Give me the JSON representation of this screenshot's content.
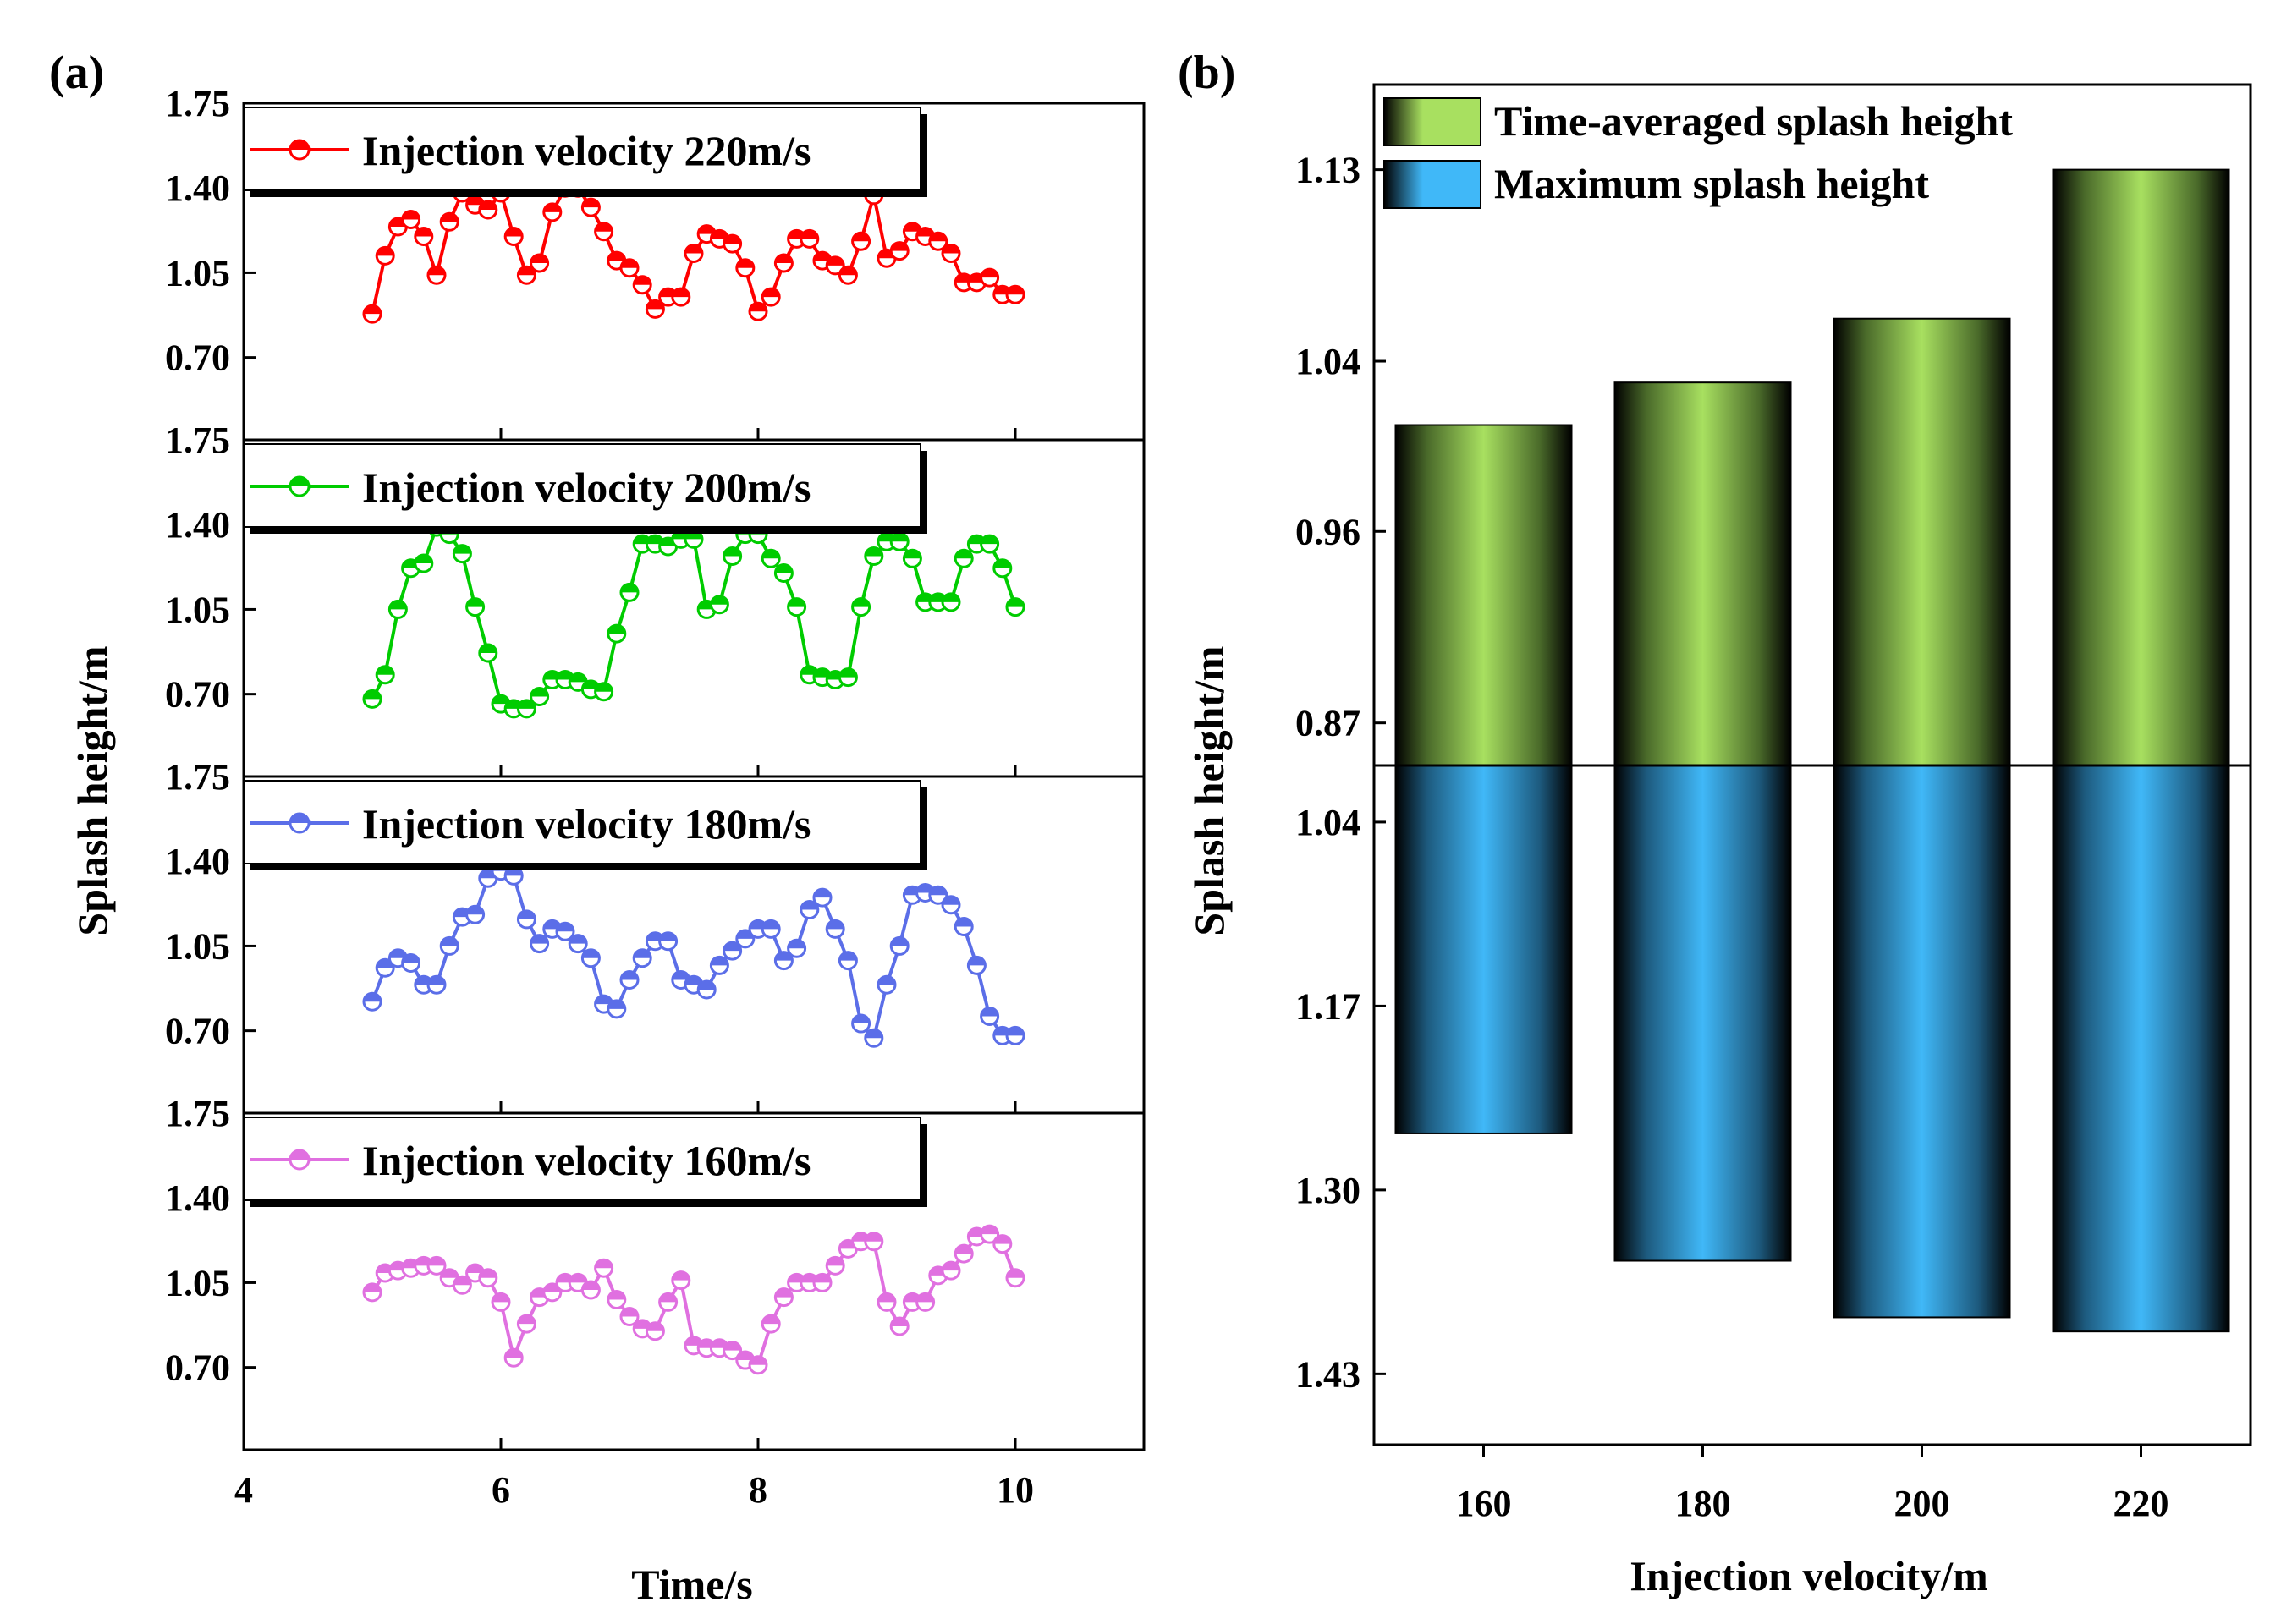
{
  "chart_data": [
    {
      "panel": "(a)",
      "type": "line",
      "xlabel": "Time/s",
      "ylabel": "Splash height/m",
      "xlim": [
        4,
        11
      ],
      "xticks": [
        4,
        6,
        8,
        10
      ],
      "ylim": [
        0.36,
        1.75
      ],
      "yticks": [
        "0.70",
        "1.05",
        "1.40",
        "1.75"
      ],
      "x": [
        5.0,
        5.1,
        5.2,
        5.3,
        5.4,
        5.5,
        5.6,
        5.7,
        5.8,
        5.9,
        6.0,
        6.1,
        6.2,
        6.3,
        6.4,
        6.5,
        6.6,
        6.7,
        6.8,
        6.9,
        7.0,
        7.1,
        7.2,
        7.3,
        7.4,
        7.5,
        7.6,
        7.7,
        7.8,
        7.9,
        8.0,
        8.1,
        8.2,
        8.3,
        8.4,
        8.5,
        8.6,
        8.7,
        8.8,
        8.9,
        9.0,
        9.1,
        9.2,
        9.3,
        9.4,
        9.5,
        9.6,
        9.7,
        9.8,
        9.9,
        10.0
      ],
      "series": [
        {
          "name": "Injection velocity 220m/s",
          "color": "#ff0000",
          "values": [
            0.88,
            1.12,
            1.24,
            1.27,
            1.2,
            1.04,
            1.26,
            1.38,
            1.33,
            1.31,
            1.38,
            1.2,
            1.04,
            1.09,
            1.3,
            1.4,
            1.4,
            1.32,
            1.22,
            1.1,
            1.07,
            1.0,
            0.9,
            0.95,
            0.95,
            1.13,
            1.21,
            1.19,
            1.17,
            1.07,
            0.89,
            0.95,
            1.09,
            1.19,
            1.19,
            1.1,
            1.08,
            1.04,
            1.18,
            1.37,
            1.11,
            1.14,
            1.22,
            1.2,
            1.18,
            1.13,
            1.01,
            1.01,
            1.03,
            0.96,
            0.96
          ]
        },
        {
          "name": "Injection velocity 200m/s",
          "color": "#00cc00",
          "values": [
            0.68,
            0.78,
            1.05,
            1.22,
            1.24,
            1.39,
            1.36,
            1.28,
            1.06,
            0.87,
            0.66,
            0.64,
            0.64,
            0.69,
            0.76,
            0.76,
            0.75,
            0.72,
            0.71,
            0.95,
            1.12,
            1.32,
            1.32,
            1.31,
            1.34,
            1.34,
            1.05,
            1.07,
            1.27,
            1.36,
            1.36,
            1.26,
            1.2,
            1.06,
            0.78,
            0.77,
            0.76,
            0.77,
            1.06,
            1.27,
            1.33,
            1.33,
            1.26,
            1.08,
            1.08,
            1.08,
            1.26,
            1.32,
            1.32,
            1.22,
            1.06
          ]
        },
        {
          "name": "Injection velocity 180m/s",
          "color": "#5b6ee8",
          "values": [
            0.82,
            0.96,
            1.0,
            0.98,
            0.89,
            0.89,
            1.05,
            1.17,
            1.18,
            1.33,
            1.36,
            1.34,
            1.16,
            1.06,
            1.12,
            1.11,
            1.06,
            1.0,
            0.81,
            0.79,
            0.91,
            1.0,
            1.07,
            1.07,
            0.91,
            0.89,
            0.87,
            0.97,
            1.03,
            1.08,
            1.12,
            1.12,
            0.99,
            1.04,
            1.2,
            1.25,
            1.12,
            0.99,
            0.73,
            0.67,
            0.89,
            1.05,
            1.26,
            1.27,
            1.26,
            1.22,
            1.13,
            0.97,
            0.76,
            0.68,
            0.68
          ]
        },
        {
          "name": "Injection velocity 160m/s",
          "color": "#e070e0",
          "values": [
            1.01,
            1.09,
            1.1,
            1.11,
            1.12,
            1.12,
            1.07,
            1.04,
            1.09,
            1.07,
            0.97,
            0.74,
            0.88,
            0.99,
            1.01,
            1.05,
            1.05,
            1.02,
            1.11,
            0.98,
            0.91,
            0.86,
            0.85,
            0.97,
            1.06,
            0.79,
            0.78,
            0.78,
            0.77,
            0.73,
            0.71,
            0.88,
            0.99,
            1.05,
            1.05,
            1.05,
            1.12,
            1.19,
            1.22,
            1.22,
            0.97,
            0.87,
            0.97,
            0.97,
            1.08,
            1.1,
            1.17,
            1.24,
            1.25,
            1.21,
            1.07
          ]
        }
      ]
    },
    {
      "panel": "(b)",
      "type": "bar",
      "xlabel": "Injection velocity/m",
      "ylabel": "Splash height/m",
      "categories": [
        "160",
        "180",
        "200",
        "220"
      ],
      "series": [
        {
          "name": "Time-averaged splash height",
          "color": "#a8e060",
          "values": [
            1.01,
            1.03,
            1.06,
            1.13
          ],
          "axis": "upper",
          "baseline": 0.85,
          "ylim": [
            0.85,
            1.17
          ],
          "yticks": [
            "0.87",
            "0.96",
            "1.04",
            "1.13"
          ]
        },
        {
          "name": "Maximum splash height",
          "color": "#40b8f8",
          "values": [
            1.26,
            1.35,
            1.39,
            1.4
          ],
          "axis": "lower-inverted",
          "baseline": 1.0,
          "ylim": [
            1.0,
            1.48
          ],
          "yticks": [
            "1.04",
            "1.17",
            "1.30",
            "1.43"
          ]
        }
      ]
    }
  ]
}
